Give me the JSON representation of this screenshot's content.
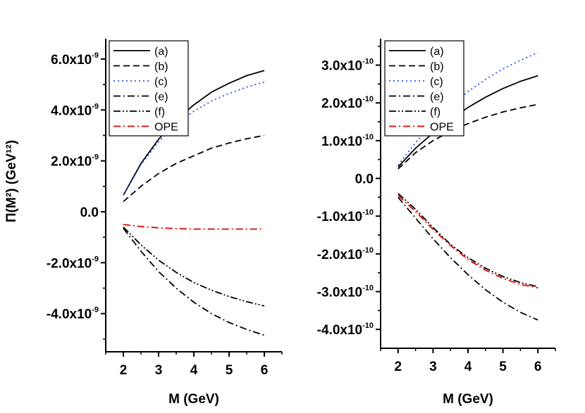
{
  "chart_data": [
    {
      "type": "line",
      "panel": "left",
      "xlabel": "M (GeV)",
      "ylabel": "Π(M²)  (GeV¹²)",
      "xlim": [
        1.5,
        6.5
      ],
      "ylim": [
        -5.5e-09,
        6.8e-09
      ],
      "x_ticks": [
        2,
        3,
        4,
        5,
        6
      ],
      "y_ticks": [
        {
          "value": -4e-09,
          "mantissa": "-4.0x10",
          "exp": "-9"
        },
        {
          "value": -2e-09,
          "mantissa": "-2.0x10",
          "exp": "-9"
        },
        {
          "value": 0.0,
          "mantissa": "0.0",
          "exp": ""
        },
        {
          "value": 2e-09,
          "mantissa": "2.0x10",
          "exp": "-9"
        },
        {
          "value": 4e-09,
          "mantissa": "4.0x10",
          "exp": "-9"
        },
        {
          "value": 6e-09,
          "mantissa": "6.0x10",
          "exp": "-9"
        }
      ],
      "x": [
        2,
        2.5,
        3,
        3.5,
        4,
        4.5,
        5,
        5.5,
        6
      ],
      "series": [
        {
          "name": "(a)",
          "style": "solid",
          "color": "#000000",
          "values": [
            6.5e-10,
            1.9e-09,
            2.85e-09,
            3.6e-09,
            4.2e-09,
            4.7e-09,
            5.05e-09,
            5.35e-09,
            5.55e-09
          ]
        },
        {
          "name": "(b)",
          "style": "dash",
          "color": "#000000",
          "values": [
            4e-10,
            1e-09,
            1.5e-09,
            1.9e-09,
            2.2e-09,
            2.5e-09,
            2.7e-09,
            2.87e-09,
            3e-09
          ]
        },
        {
          "name": "(c)",
          "style": "dot",
          "color": "#2e4ef0",
          "values": [
            6.5e-10,
            1.85e-09,
            2.75e-09,
            3.45e-09,
            3.95e-09,
            4.35e-09,
            4.65e-09,
            4.9e-09,
            5.1e-09
          ]
        },
        {
          "name": "(e)",
          "style": "dashdot",
          "color": "#000000",
          "values": [
            -6.5e-10,
            -1.55e-09,
            -2.35e-09,
            -3e-09,
            -3.55e-09,
            -4e-09,
            -4.35e-09,
            -4.62e-09,
            -4.85e-09
          ]
        },
        {
          "name": "(f)",
          "style": "dashdotdot",
          "color": "#000000",
          "values": [
            -6e-10,
            -1.3e-09,
            -1.9e-09,
            -2.38e-09,
            -2.78e-09,
            -3.08e-09,
            -3.33e-09,
            -3.53e-09,
            -3.7e-09
          ]
        },
        {
          "name": "OPE",
          "style": "dashdot",
          "color": "#e00000",
          "values": [
            -5e-10,
            -5.8e-10,
            -6.3e-10,
            -6.6e-10,
            -6.8e-10,
            -6.8e-10,
            -6.8e-10,
            -6.8e-10,
            -6.8e-10
          ]
        }
      ]
    },
    {
      "type": "line",
      "panel": "right",
      "xlabel": "M (GeV)",
      "ylabel": "",
      "xlim": [
        1.5,
        6.5
      ],
      "ylim": [
        -4.5e-10,
        3.7e-10
      ],
      "x_ticks": [
        2,
        3,
        4,
        5,
        6
      ],
      "y_ticks": [
        {
          "value": -4e-10,
          "mantissa": "-4.0x10",
          "exp": "-10"
        },
        {
          "value": -3e-10,
          "mantissa": "-3.0x10",
          "exp": "-10"
        },
        {
          "value": -2e-10,
          "mantissa": "-2.0x10",
          "exp": "-10"
        },
        {
          "value": -1e-10,
          "mantissa": "-1.0x10",
          "exp": "-10"
        },
        {
          "value": 0.0,
          "mantissa": "0.0",
          "exp": ""
        },
        {
          "value": 1e-10,
          "mantissa": "1.0x10",
          "exp": "-10"
        },
        {
          "value": 2e-10,
          "mantissa": "2.0x10",
          "exp": "-10"
        },
        {
          "value": 3e-10,
          "mantissa": "3.0x10",
          "exp": "-10"
        }
      ],
      "x": [
        2,
        2.5,
        3,
        3.5,
        4,
        4.5,
        5,
        5.5,
        6
      ],
      "series": [
        {
          "name": "(a)",
          "style": "solid",
          "color": "#000000",
          "values": [
            3e-11,
            8e-11,
            1.2e-10,
            1.55e-10,
            1.88e-10,
            2.15e-10,
            2.38e-10,
            2.57e-10,
            2.72e-10
          ]
        },
        {
          "name": "(b)",
          "style": "dash",
          "color": "#000000",
          "values": [
            2.5e-11,
            6.8e-11,
            1e-10,
            1.25e-10,
            1.45e-10,
            1.62e-10,
            1.76e-10,
            1.87e-10,
            1.96e-10
          ]
        },
        {
          "name": "(c)",
          "style": "dot",
          "color": "#2e4ef0",
          "values": [
            3.5e-11,
            9.5e-11,
            1.45e-10,
            1.9e-10,
            2.3e-10,
            2.62e-10,
            2.9e-10,
            3.13e-10,
            3.33e-10
          ]
        },
        {
          "name": "(e)",
          "style": "dashdot",
          "color": "#000000",
          "values": [
            -5e-11,
            -1.05e-10,
            -1.6e-10,
            -2.1e-10,
            -2.55e-10,
            -2.95e-10,
            -3.28e-10,
            -3.55e-10,
            -3.75e-10
          ]
        },
        {
          "name": "(f)",
          "style": "dashdotdot",
          "color": "#000000",
          "values": [
            -4e-11,
            -8.2e-11,
            -1.3e-10,
            -1.75e-10,
            -2.1e-10,
            -2.38e-10,
            -2.6e-10,
            -2.76e-10,
            -2.87e-10
          ]
        },
        {
          "name": "OPE",
          "style": "dashdot",
          "color": "#e00000",
          "values": [
            -4.5e-11,
            -8.8e-11,
            -1.35e-10,
            -1.78e-10,
            -2.15e-10,
            -2.43e-10,
            -2.65e-10,
            -2.81e-10,
            -2.9e-10
          ]
        }
      ]
    }
  ]
}
